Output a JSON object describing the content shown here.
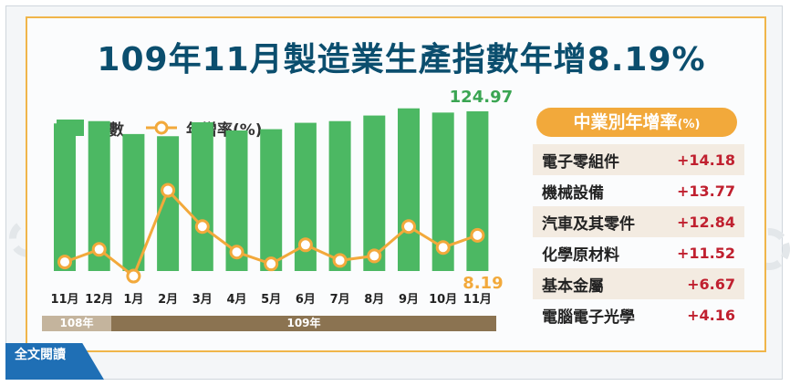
{
  "title": "109年11月製造業生產指數年增8.19%",
  "legend": {
    "bar_label": "指數",
    "line_label": "年增率(%)"
  },
  "colors": {
    "bar": "#4cb863",
    "line": "#f2a93b",
    "title": "#0b4e6e",
    "value_red": "#c0202f"
  },
  "chart_data": {
    "type": "bar",
    "categories": [
      "11月",
      "12月",
      "1月",
      "2月",
      "3月",
      "4月",
      "5月",
      "6月",
      "7月",
      "8月",
      "9月",
      "10月",
      "11月"
    ],
    "series": [
      {
        "name": "指數",
        "type": "bar",
        "values": [
          115.5,
          117.3,
          107.2,
          105.5,
          116.4,
          110.0,
          111.0,
          116.0,
          117.3,
          121.7,
          127.3,
          124.0,
          124.97
        ]
      },
      {
        "name": "年增率(%)",
        "type": "line",
        "values": [
          1.2,
          4.5,
          -2.5,
          20.0,
          10.5,
          3.8,
          0.7,
          5.7,
          1.6,
          2.8,
          10.5,
          5.0,
          8.19
        ]
      }
    ],
    "labels": {
      "last_bar": "124.97",
      "last_point": "8.19"
    },
    "bar_ylim": [
      0,
      140
    ],
    "line_ylim": [
      -5,
      40
    ],
    "periods": [
      {
        "label": "108年"
      },
      {
        "label": "109年"
      }
    ]
  },
  "industry_panel": {
    "title": "中業別年增率",
    "unit": "(%)",
    "items": [
      {
        "name": "電子零組件",
        "value": "+14.18"
      },
      {
        "name": "機械設備",
        "value": "+13.77"
      },
      {
        "name": "汽車及其零件",
        "value": "+12.84"
      },
      {
        "name": "化學原材料",
        "value": "+11.52"
      },
      {
        "name": "基本金屬",
        "value": "+6.67"
      },
      {
        "name": "電腦電子光學",
        "value": "+4.16"
      }
    ]
  },
  "read_button": "全文閱讀"
}
